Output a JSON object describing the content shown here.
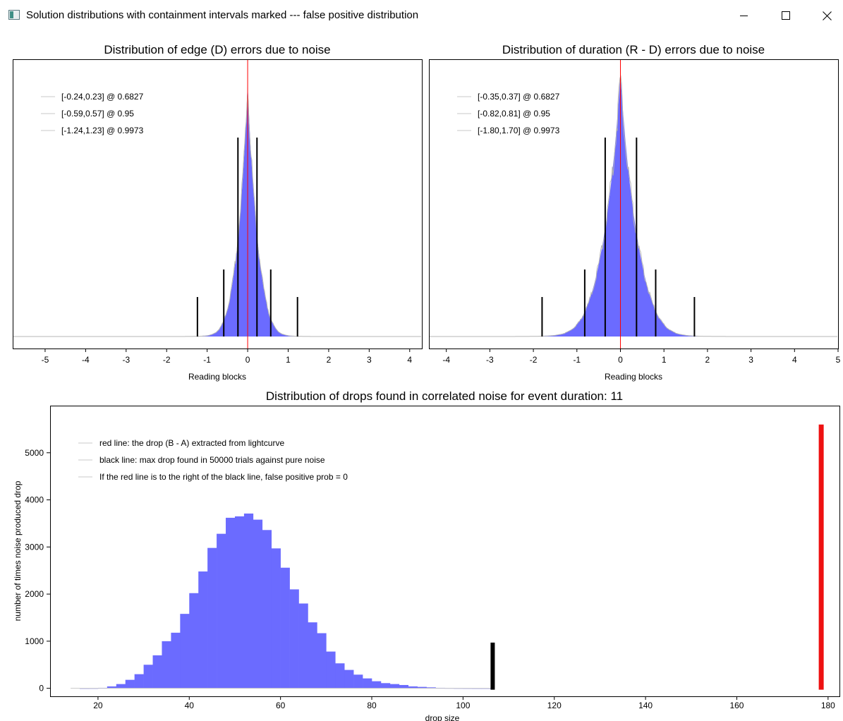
{
  "window": {
    "title": "Solution distributions with containment intervals marked --- false positive distribution",
    "icon": "app-window-icon",
    "controls": [
      "minimize-icon",
      "maximize-icon",
      "close-icon"
    ]
  },
  "chart_data": [
    {
      "type": "bar",
      "title": "Distribution of edge (D) errors due to noise",
      "xlabel": "Reading blocks",
      "ylabel": "",
      "xlim": [
        -5.8,
        4.3
      ],
      "xticks": [
        -5,
        -4,
        -3,
        -2,
        -1,
        0,
        1,
        2,
        3,
        4
      ],
      "distribution": {
        "center": 0.0,
        "sigma": 0.23,
        "shape": "laplace-like histogram"
      },
      "center_line": {
        "x": 0.0,
        "color": "#ff0000"
      },
      "intervals": [
        {
          "label": "[-0.24,0.23] @ 0.6827",
          "lo": -0.24,
          "hi": 0.23,
          "level": 0.6827
        },
        {
          "label": "[-0.59,0.57] @ 0.95",
          "lo": -0.59,
          "hi": 0.57,
          "level": 0.95
        },
        {
          "label": "[-1.24,1.23] @ 0.9973",
          "lo": -1.24,
          "hi": 1.23,
          "level": 0.9973
        }
      ],
      "legend_position": "top-left",
      "colors": {
        "bars": "#6b6bff",
        "outline": "#b4b4b4",
        "markers": "#000000"
      }
    },
    {
      "type": "bar",
      "title": "Distribution of duration (R - D) errors due to noise",
      "xlabel": "Reading blocks",
      "ylabel": "",
      "xlim": [
        -4.4,
        5.0
      ],
      "xticks": [
        -4,
        -3,
        -2,
        -1,
        0,
        1,
        2,
        3,
        4,
        5
      ],
      "distribution": {
        "center": 0.0,
        "sigma": 0.36,
        "shape": "laplace-like histogram"
      },
      "center_line": {
        "x": 0.0,
        "color": "#ff0000"
      },
      "intervals": [
        {
          "label": "[-0.35,0.37] @ 0.6827",
          "lo": -0.35,
          "hi": 0.37,
          "level": 0.6827
        },
        {
          "label": "[-0.82,0.81] @ 0.95",
          "lo": -0.82,
          "hi": 0.81,
          "level": 0.95
        },
        {
          "label": "[-1.80,1.70] @ 0.9973",
          "lo": -1.8,
          "hi": 1.7,
          "level": 0.9973
        }
      ],
      "legend_position": "top-left",
      "colors": {
        "bars": "#6b6bff",
        "outline": "#b4b4b4",
        "markers": "#000000"
      }
    },
    {
      "type": "bar",
      "title": "Distribution of drops found in correlated noise for event duration: 11",
      "xlabel": "drop size",
      "ylabel": "number of times noise produced drop",
      "xlim": [
        9.5,
        182.5
      ],
      "ylim": [
        -170,
        6000
      ],
      "xticks": [
        20,
        40,
        60,
        80,
        100,
        120,
        140,
        160,
        180
      ],
      "yticks": [
        0,
        1000,
        2000,
        3000,
        4000,
        5000
      ],
      "bin_width": 2,
      "bins_start": 14,
      "counts": [
        0,
        1,
        2,
        10,
        40,
        90,
        180,
        300,
        500,
        700,
        1000,
        1180,
        1580,
        2020,
        2480,
        2980,
        3280,
        3620,
        3650,
        3710,
        3580,
        3360,
        2970,
        2560,
        2100,
        1800,
        1400,
        1170,
        780,
        530,
        390,
        290,
        210,
        150,
        110,
        90,
        70,
        40,
        30,
        20,
        10,
        5,
        3,
        2,
        1,
        1,
        0
      ],
      "lines": [
        {
          "label": "red line: the drop (B - A) extracted from lightcurve",
          "x": 178.5,
          "height": 5600,
          "color": "#ee1111"
        },
        {
          "label": "black line: max drop found in 50000 trials against pure noise",
          "x": 106.5,
          "height": 970,
          "color": "#000000"
        },
        {
          "label": "If the red line is to the right of the black line, false positive prob = 0"
        }
      ],
      "legend_position": "top-left",
      "colors": {
        "bars": "#6b6bff",
        "outline": "#c8c8c8"
      }
    }
  ]
}
